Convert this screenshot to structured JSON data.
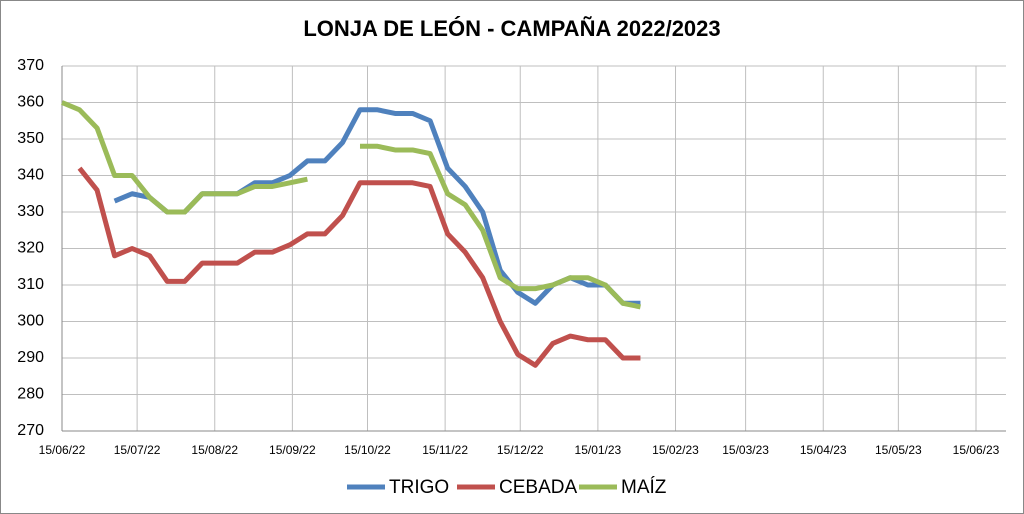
{
  "chart_data": {
    "type": "line",
    "title": "LONJA DE LEÓN - CAMPAÑA 2022/2023",
    "x": [
      "2022-06-15",
      "2022-06-22",
      "2022-06-29",
      "2022-07-06",
      "2022-07-13",
      "2022-07-20",
      "2022-07-27",
      "2022-08-03",
      "2022-08-10",
      "2022-08-17",
      "2022-08-24",
      "2022-08-31",
      "2022-09-07",
      "2022-09-14",
      "2022-09-21",
      "2022-09-28",
      "2022-10-05",
      "2022-10-12",
      "2022-10-19",
      "2022-10-26",
      "2022-11-02",
      "2022-11-09",
      "2022-11-16",
      "2022-11-23",
      "2022-11-30",
      "2022-12-07",
      "2022-12-14",
      "2022-12-21",
      "2022-12-28",
      "2023-01-04",
      "2023-01-11",
      "2023-01-18",
      "2023-01-25",
      "2023-02-01"
    ],
    "series": [
      {
        "name": "TRIGO",
        "color": "#4f81bd",
        "values": [
          null,
          null,
          null,
          333,
          335,
          334,
          330,
          330,
          335,
          335,
          335,
          338,
          338,
          340,
          344,
          344,
          349,
          358,
          358,
          357,
          357,
          355,
          342,
          337,
          330,
          314,
          308,
          305,
          310,
          312,
          310,
          310,
          305,
          305
        ]
      },
      {
        "name": "CEBADA",
        "color": "#c0504d",
        "values": [
          null,
          342,
          336,
          318,
          320,
          318,
          311,
          311,
          316,
          316,
          316,
          319,
          319,
          321,
          324,
          324,
          329,
          338,
          338,
          338,
          338,
          337,
          324,
          319,
          312,
          300,
          291,
          288,
          294,
          296,
          295,
          295,
          290,
          290
        ]
      },
      {
        "name": "MAÍZ",
        "color": "#9bbb59",
        "values": [
          360,
          358,
          353,
          340,
          340,
          334,
          330,
          330,
          335,
          335,
          335,
          337,
          337,
          338,
          339,
          null,
          null,
          348,
          348,
          347,
          347,
          346,
          335,
          332,
          325,
          312,
          309,
          309,
          310,
          312,
          312,
          310,
          305,
          304
        ]
      }
    ],
    "xlim": [
      "2022-06-15",
      "2023-06-15"
    ],
    "xticks": [
      {
        "value": "2022-06-15",
        "label": "15/06/22"
      },
      {
        "value": "2022-07-15",
        "label": "15/07/22"
      },
      {
        "value": "2022-08-15",
        "label": "15/08/22"
      },
      {
        "value": "2022-09-15",
        "label": "15/09/22"
      },
      {
        "value": "2022-10-15",
        "label": "15/10/22"
      },
      {
        "value": "2022-11-15",
        "label": "15/11/22"
      },
      {
        "value": "2022-12-15",
        "label": "15/12/22"
      },
      {
        "value": "2023-01-15",
        "label": "15/01/23"
      },
      {
        "value": "2023-02-15",
        "label": "15/02/23"
      },
      {
        "value": "2023-03-15",
        "label": "15/03/23"
      },
      {
        "value": "2023-04-15",
        "label": "15/04/23"
      },
      {
        "value": "2023-05-15",
        "label": "15/05/23"
      },
      {
        "value": "2023-06-15",
        "label": "15/06/23"
      }
    ],
    "ylim": [
      270,
      370
    ],
    "yticks": [
      270,
      280,
      290,
      300,
      310,
      320,
      330,
      340,
      350,
      360,
      370
    ],
    "grid": true,
    "legend": "bottom"
  }
}
